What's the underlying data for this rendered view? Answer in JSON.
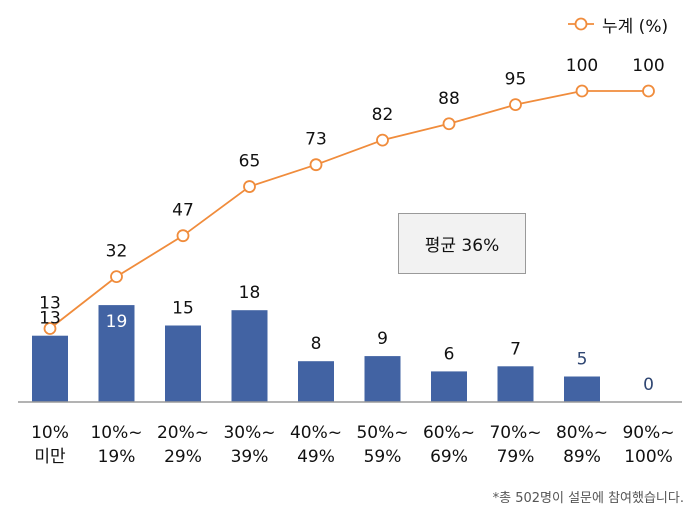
{
  "chart_data": {
    "type": "bar+line",
    "categories": [
      [
        "10%",
        "미만"
      ],
      [
        "10%~",
        "19%"
      ],
      [
        "20%~",
        "29%"
      ],
      [
        "30%~",
        "39%"
      ],
      [
        "40%~",
        "49%"
      ],
      [
        "50%~",
        "59%"
      ],
      [
        "60%~",
        "69%"
      ],
      [
        "70%~",
        "79%"
      ],
      [
        "80%~",
        "89%"
      ],
      [
        "90%~",
        "100%"
      ]
    ],
    "series": [
      {
        "type": "bar",
        "values": [
          13,
          19,
          15,
          18,
          8,
          9,
          6,
          7,
          5,
          0
        ],
        "color": "#4263a3"
      },
      {
        "type": "line",
        "name": "누계 (%)",
        "values": [
          13,
          32,
          47,
          65,
          73,
          82,
          88,
          95,
          100,
          100
        ],
        "color": "#f08c3c"
      }
    ],
    "legend_position": "top-right",
    "grid": false,
    "annotation": "평균 36%",
    "footnote": "*총 502명이 설문에 참여했습니다."
  }
}
